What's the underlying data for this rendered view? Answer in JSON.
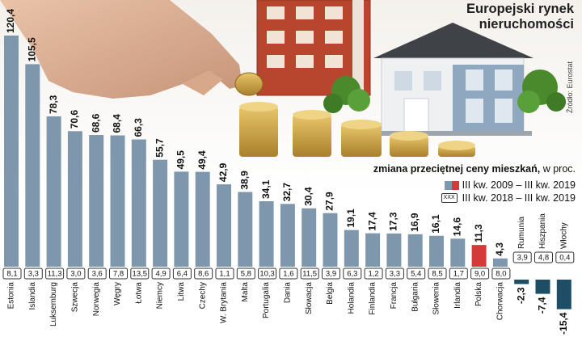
{
  "title": [
    "Europejski rynek",
    "nieruchomości"
  ],
  "source": "Źródło: Eurostat",
  "subtitle": {
    "bold": "zmiana przeciętnej ceny mieszkań,",
    "normal": " w proc."
  },
  "legend": {
    "item1": "III kw. 2009 – III kw. 2019",
    "item2_box": "XXX",
    "item2": "III kw. 2018 – III kw. 2019"
  },
  "colors": {
    "bar": "#7f97ad",
    "highlight": "#d43a3a",
    "negative": "#1d4e66",
    "box_border": "#333333"
  },
  "chart_data": {
    "type": "bar",
    "categories": [
      "Estonia",
      "Islandia",
      "Luksemburg",
      "Szwecja",
      "Norwegia",
      "Węgry",
      "Łotwa",
      "Niemcy",
      "Litwa",
      "Czechy",
      "W. Brytania",
      "Malta",
      "Portugalia",
      "Dania",
      "Słowacja",
      "Belgia",
      "Holandia",
      "Finlandia",
      "Francja",
      "Bułgaria",
      "Słowenia",
      "Irlandia",
      "Polska",
      "Chorwacja",
      "Rumunia",
      "Hiszpania",
      "Włochy"
    ],
    "series": [
      {
        "name": "III kw. 2009 – III kw. 2019",
        "values": [
          120.4,
          105.5,
          78.3,
          70.6,
          68.6,
          68.4,
          66.3,
          55.7,
          49.5,
          49.4,
          42.9,
          38.9,
          34.1,
          32.7,
          30.4,
          27.9,
          19.1,
          17.4,
          17.3,
          16.9,
          16.1,
          14.6,
          11.3,
          4.3,
          -2.3,
          -7.4,
          -15.4
        ],
        "labels": [
          "120,4",
          "105,5",
          "78,3",
          "70,6",
          "68,6",
          "68,4",
          "66,3",
          "55,7",
          "49,5",
          "49,4",
          "42,9",
          "38,9",
          "34,1",
          "32,7",
          "30,4",
          "27,9",
          "19,1",
          "17,4",
          "17,3",
          "16,9",
          "16,1",
          "14,6",
          "11,3",
          "4,3",
          "-2,3",
          "-7,4",
          "-15,4"
        ]
      },
      {
        "name": "III kw. 2018 – III kw. 2019",
        "values": [
          8.1,
          3.3,
          11.3,
          3.0,
          3.6,
          7.8,
          13.5,
          4.9,
          6.4,
          8.6,
          1.1,
          5.8,
          10.3,
          1.6,
          11.5,
          3.9,
          6.3,
          1.2,
          3.3,
          5.4,
          8.5,
          1.7,
          9.0,
          8.0,
          3.9,
          4.8,
          0.4
        ],
        "labels": [
          "8,1",
          "3,3",
          "11,3",
          "3,0",
          "3,6",
          "7,8",
          "13,5",
          "4,9",
          "6,4",
          "8,6",
          "1,1",
          "5,8",
          "10,3",
          "1,6",
          "11,5",
          "3,9",
          "6,3",
          "1,2",
          "3,3",
          "5,4",
          "8,5",
          "1,7",
          "9,0",
          "8,0",
          "3,9",
          "4,8",
          "0,4"
        ]
      }
    ],
    "highlight": "Polska"
  }
}
